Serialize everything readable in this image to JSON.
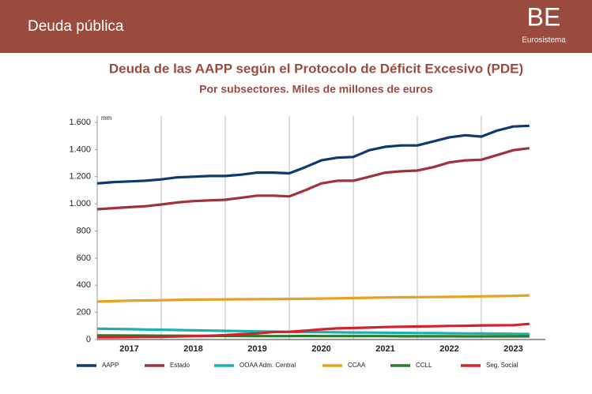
{
  "header": {
    "title": "Deuda pública",
    "logo": "BE",
    "logo_subtitle": "Eurosistema"
  },
  "chart_data": {
    "type": "line",
    "title": "Deuda de las AAPP según el Protocolo de Déficit Excesivo (PDE)",
    "subtitle": "Por subsectores. Miles de millones de euros",
    "ylabel": "mm",
    "year_labels": [
      "2017",
      "2018",
      "2019",
      "2020",
      "2021",
      "2022",
      "2023"
    ],
    "x": [
      2017,
      2017.25,
      2017.5,
      2017.75,
      2018,
      2018.25,
      2018.5,
      2018.75,
      2019,
      2019.25,
      2019.5,
      2019.75,
      2020,
      2020.25,
      2020.5,
      2020.75,
      2021,
      2021.25,
      2021.5,
      2021.75,
      2022,
      2022.25,
      2022.5,
      2022.75,
      2023,
      2023.25,
      2023.5,
      2023.75
    ],
    "xlim": [
      2017,
      2024
    ],
    "xticks": [
      2018,
      2019,
      2020,
      2021,
      2022,
      2023
    ],
    "ylim": [
      0,
      1600
    ],
    "yticks": [
      0,
      200,
      400,
      600,
      800,
      {
        "value": 1000,
        "label": "1.000"
      },
      {
        "value": 1200,
        "label": "1.200"
      },
      {
        "value": 1400,
        "label": "1.400"
      },
      {
        "value": 1600,
        "label": "1.600"
      }
    ],
    "grid": "x",
    "series": [
      {
        "name": "AAPP",
        "color": "#0d3a6e",
        "values": [
          1150,
          1160,
          1165,
          1170,
          1180,
          1195,
          1200,
          1205,
          1205,
          1215,
          1230,
          1230,
          1225,
          1270,
          1320,
          1340,
          1345,
          1395,
          1420,
          1430,
          1430,
          1460,
          1490,
          1505,
          1495,
          1540,
          1570,
          1575
        ]
      },
      {
        "name": "Estado",
        "color": "#a0323a",
        "values": [
          960,
          968,
          975,
          982,
          995,
          1010,
          1020,
          1025,
          1030,
          1045,
          1060,
          1060,
          1055,
          1100,
          1150,
          1170,
          1170,
          1200,
          1230,
          1240,
          1245,
          1270,
          1305,
          1320,
          1325,
          1360,
          1395,
          1410
        ]
      },
      {
        "name": "OOAA Adm. Central",
        "color": "#1ab0b0",
        "values": [
          80,
          78,
          76,
          74,
          72,
          70,
          68,
          66,
          64,
          62,
          60,
          58,
          56,
          55,
          54,
          53,
          52,
          51,
          50,
          49,
          48,
          47,
          46,
          45,
          44,
          43,
          42,
          41
        ]
      },
      {
        "name": "CCAA",
        "color": "#e8a020",
        "values": [
          280,
          283,
          286,
          288,
          290,
          292,
          294,
          295,
          296,
          297,
          298,
          298,
          299,
          300,
          302,
          304,
          306,
          308,
          310,
          311,
          312,
          313,
          314,
          316,
          318,
          320,
          322,
          325
        ]
      },
      {
        "name": "CCLL",
        "color": "#2a7a2a",
        "values": [
          30,
          30,
          29,
          29,
          28,
          28,
          27,
          27,
          26,
          26,
          25,
          25,
          25,
          26,
          25,
          25,
          25,
          25,
          25,
          24,
          24,
          24,
          24,
          23,
          23,
          23,
          23,
          23
        ]
      },
      {
        "name": "Seg. Social",
        "color": "#d8202a",
        "values": [
          17,
          17,
          18,
          19,
          20,
          22,
          25,
          28,
          32,
          40,
          45,
          55,
          57,
          65,
          75,
          82,
          85,
          88,
          92,
          94,
          96,
          98,
          100,
          101,
          104,
          105,
          106,
          115
        ]
      }
    ]
  }
}
